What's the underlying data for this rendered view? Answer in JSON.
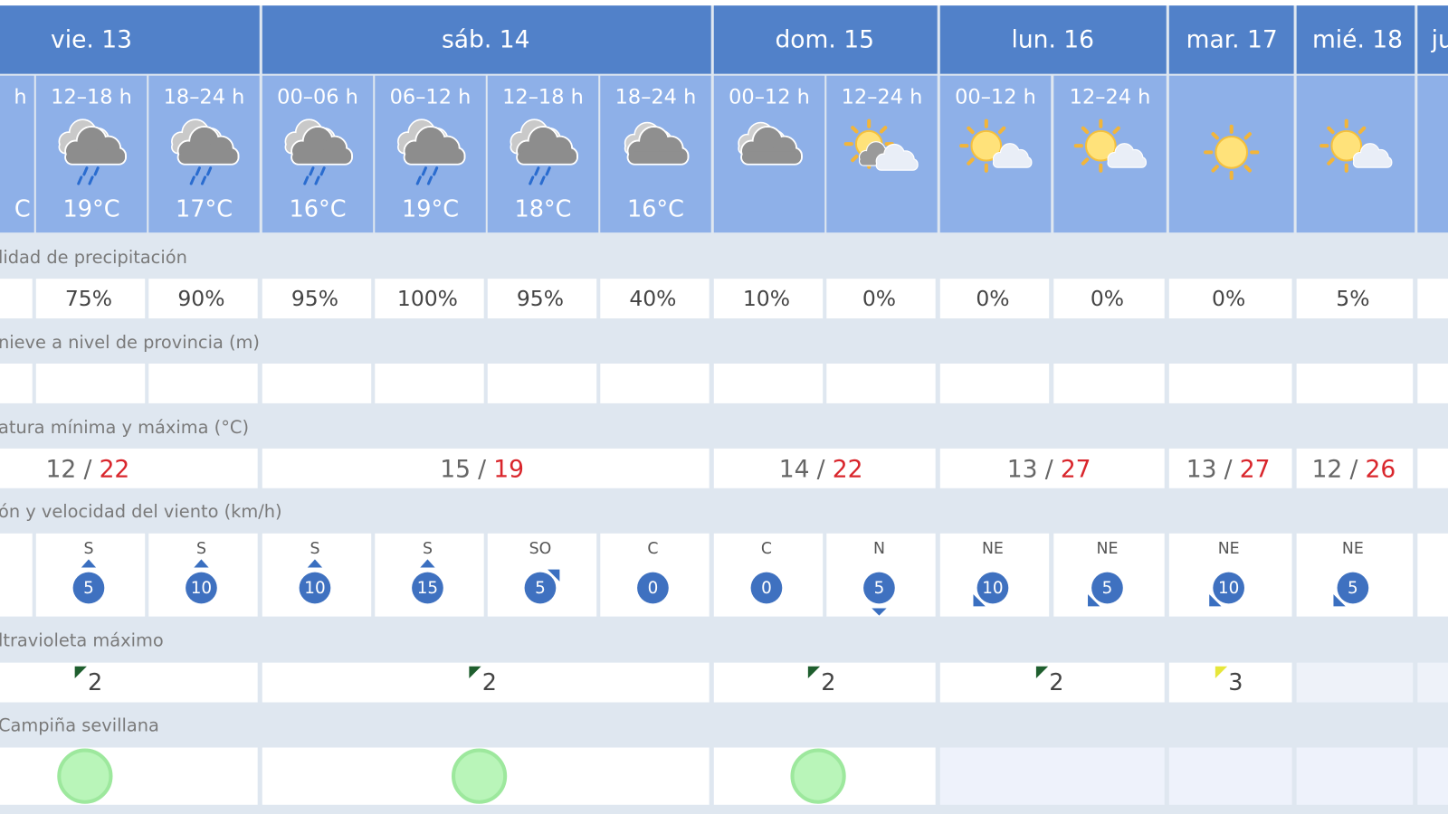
{
  "days": [
    {
      "label": "vie. 13",
      "temp_min": "12",
      "temp_max": "22",
      "uv_max": "2"
    },
    {
      "label": "sáb. 14",
      "temp_min": "15",
      "temp_max": "19",
      "uv_max": "2"
    },
    {
      "label": "dom. 15",
      "temp_min": "14",
      "temp_max": "22",
      "uv_max": "2"
    },
    {
      "label": "lun. 16",
      "temp_min": "13",
      "temp_max": "27",
      "uv_max": "2"
    },
    {
      "label": "mar. 17",
      "temp_min": "13",
      "temp_max": "27",
      "uv_max": "3"
    },
    {
      "label": "mié. 18",
      "temp_min": "12",
      "temp_max": "26"
    },
    {
      "label": "ju"
    }
  ],
  "periods": [
    {
      "label": "h",
      "temp": "C"
    },
    {
      "label": "12–18 h",
      "temp": "19°C",
      "precip": "75%",
      "wind_dir": "S",
      "wind_speed": "5"
    },
    {
      "label": "18–24 h",
      "temp": "17°C",
      "precip": "90%",
      "wind_dir": "S",
      "wind_speed": "10"
    },
    {
      "label": "00–06 h",
      "temp": "16°C",
      "precip": "95%",
      "wind_dir": "S",
      "wind_speed": "10"
    },
    {
      "label": "06–12 h",
      "temp": "19°C",
      "precip": "100%",
      "wind_dir": "S",
      "wind_speed": "15"
    },
    {
      "label": "12–18 h",
      "temp": "18°C",
      "precip": "95%",
      "wind_dir": "SO",
      "wind_speed": "5"
    },
    {
      "label": "18–24 h",
      "temp": "16°C",
      "precip": "40%",
      "wind_dir": "C",
      "wind_speed": "0"
    },
    {
      "label": "00–12 h",
      "precip": "10%",
      "wind_dir": "C",
      "wind_speed": "0"
    },
    {
      "label": "12–24 h",
      "precip": "0%",
      "wind_dir": "N",
      "wind_speed": "5"
    },
    {
      "label": "00–12 h",
      "precip": "0%",
      "wind_dir": "NE",
      "wind_speed": "10"
    },
    {
      "label": "12–24 h",
      "precip": "0%",
      "wind_dir": "NE",
      "wind_speed": "5"
    },
    {
      "precip": "0%",
      "wind_dir": "NE",
      "wind_speed": "10"
    },
    {
      "precip": "5%",
      "wind_dir": "NE",
      "wind_speed": "5"
    }
  ],
  "sections": {
    "precipitation": "lidad de precipitación",
    "snow": "nieve a nivel de provincia (m)",
    "temperature": "atura mínima y máxima (°C)",
    "wind": "ón y velocidad del viento (km/h)",
    "uv": "ltravioleta máximo",
    "air_quality": "Campiña sevillana"
  },
  "temp_separator": "/"
}
